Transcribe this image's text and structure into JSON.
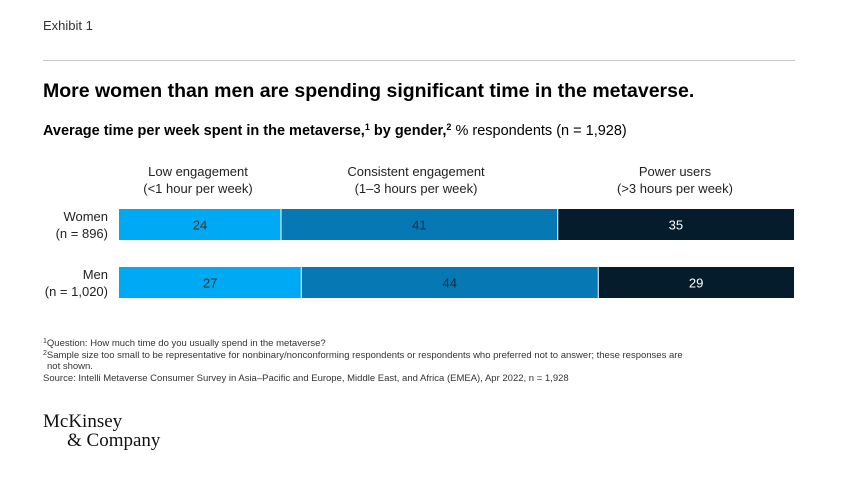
{
  "header": {
    "exhibit": "Exhibit 1",
    "title": "More women than men are spending significant time in the metaverse.",
    "subtitle_main": "Average time per week spent in the metaverse,",
    "subtitle_sup1": "1",
    "subtitle_mid": " by gender,",
    "subtitle_sup2": "2",
    "subtitle_rest": " % respondents (n = 1,928)"
  },
  "categories": [
    {
      "line1": "Low engagement",
      "line2": "(<1 hour per week)"
    },
    {
      "line1": "Consistent engagement",
      "line2": "(1–3 hours per week)"
    },
    {
      "line1": "Power users",
      "line2": "(>3 hours per week)"
    }
  ],
  "chart_data": {
    "type": "bar",
    "orientation": "horizontal",
    "stacked": true,
    "unit": "% respondents",
    "rows": [
      {
        "label": "Women",
        "sublabel": "(n = 896)",
        "values": [
          24,
          41,
          35
        ]
      },
      {
        "label": "Men",
        "sublabel": "(n = 1,020)",
        "values": [
          27,
          44,
          29
        ]
      }
    ],
    "series": [
      {
        "name": "Low engagement",
        "color": "#00a9f4"
      },
      {
        "name": "Consistent engagement",
        "color": "#0679b5"
      },
      {
        "name": "Power users",
        "color": "#051c2c"
      }
    ],
    "label_colors": [
      "#333333",
      "#0e2c44",
      "#ffffff"
    ],
    "xlim": [
      0,
      100
    ]
  },
  "footnotes": {
    "note1_sup": "1",
    "note1": "Question: How much time do you usually spend in the metaverse?",
    "note2_sup": "2",
    "note2": "Sample size too small to be representative for nonbinary/nonconforming respondents or respondents who preferred not to answer; these responses are",
    "note2_cont": "not shown.",
    "source": "Source: Intelli Metaverse Consumer Survey in Asia–Pacific and Europe, Middle East, and Africa (EMEA), Apr 2022, n = 1,928"
  },
  "logo": {
    "line1": "McKinsey",
    "line2": "& Company"
  }
}
